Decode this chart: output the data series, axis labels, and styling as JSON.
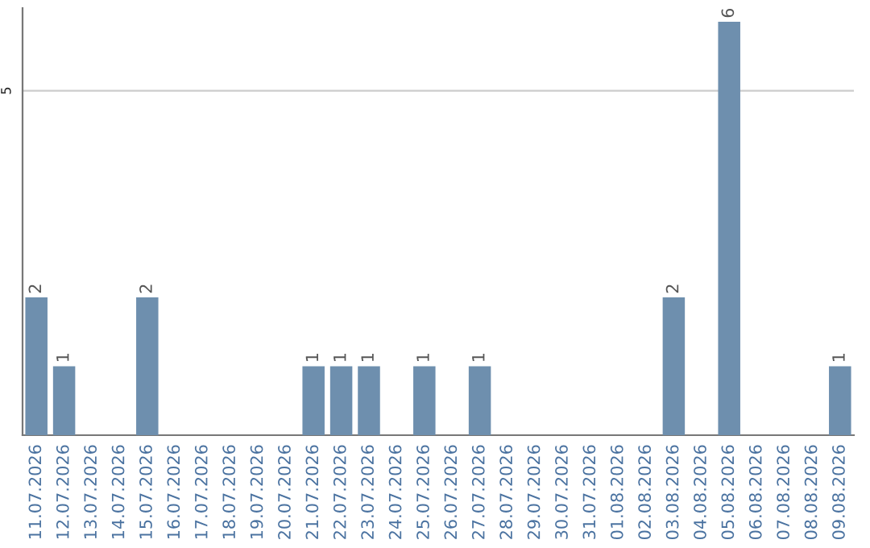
{
  "chart_data": {
    "type": "bar",
    "categories": [
      "11.07.2026",
      "12.07.2026",
      "13.07.2026",
      "14.07.2026",
      "15.07.2026",
      "16.07.2026",
      "17.07.2026",
      "18.07.2026",
      "19.07.2026",
      "20.07.2026",
      "21.07.2026",
      "22.07.2026",
      "23.07.2026",
      "24.07.2026",
      "25.07.2026",
      "26.07.2026",
      "27.07.2026",
      "28.07.2026",
      "29.07.2026",
      "30.07.2026",
      "31.07.2026",
      "01.08.2026",
      "02.08.2026",
      "03.08.2026",
      "04.08.2026",
      "05.08.2026",
      "06.08.2026",
      "07.08.2026",
      "08.08.2026",
      "09.08.2026"
    ],
    "values": [
      2,
      1,
      0,
      0,
      2,
      0,
      0,
      0,
      0,
      0,
      1,
      1,
      1,
      0,
      1,
      0,
      1,
      0,
      0,
      0,
      0,
      0,
      0,
      2,
      0,
      6,
      0,
      0,
      0,
      1
    ],
    "value_labels": [
      "2",
      "1",
      null,
      null,
      "2",
      null,
      null,
      null,
      null,
      null,
      "1",
      "1",
      "1",
      null,
      "1",
      null,
      "1",
      null,
      null,
      null,
      null,
      null,
      null,
      "2",
      null,
      "6",
      null,
      null,
      null,
      "1"
    ],
    "color": "#6e8fae",
    "ylim": [
      0,
      6.2
    ],
    "yticks": [
      5
    ],
    "grid": "y",
    "legend": false
  }
}
